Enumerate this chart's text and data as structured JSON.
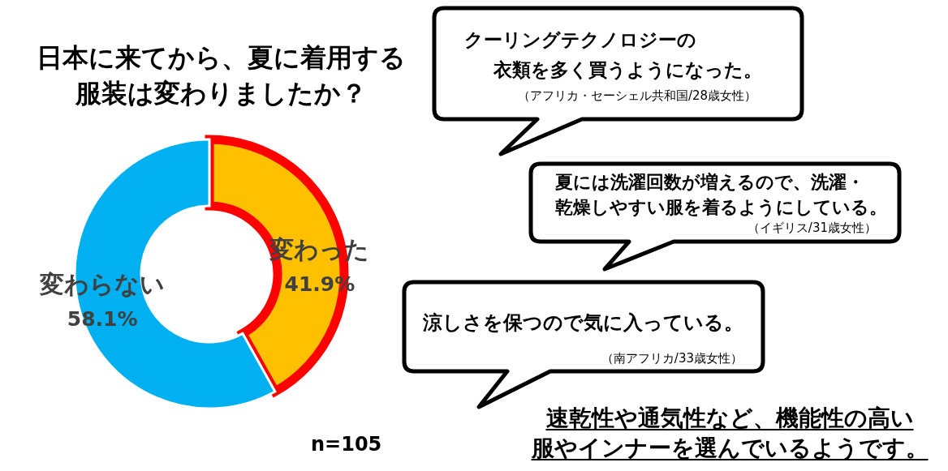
{
  "chart_data": {
    "type": "donut",
    "title": "日本に来てから、夏に着用する服装は変わりましたか？",
    "categories": [
      "変わった",
      "変わらない"
    ],
    "values": [
      41.9,
      58.1
    ],
    "colors": [
      "#ffc000",
      "#00b0f0"
    ],
    "value_labels": [
      "41.9%",
      "58.1%"
    ],
    "annotations": [
      "クーリングテクノロジーの",
      "衣類を多く買うようになった。",
      "（アフリカ・セーシェル共和国/28歳女性）",
      "夏には洗濯回数が増えるので、洗濯・",
      "乾燥しやすい服を着るようにしている。",
      "（イギリス/31歳女性）",
      "涼しさを保つので気に入っている。",
      "（南アフリカ/33歳女性）",
      "速乾性や通気性など、機能性の高い",
      "服やインナーを選んでいるようです。",
      "n=105"
    ]
  }
}
